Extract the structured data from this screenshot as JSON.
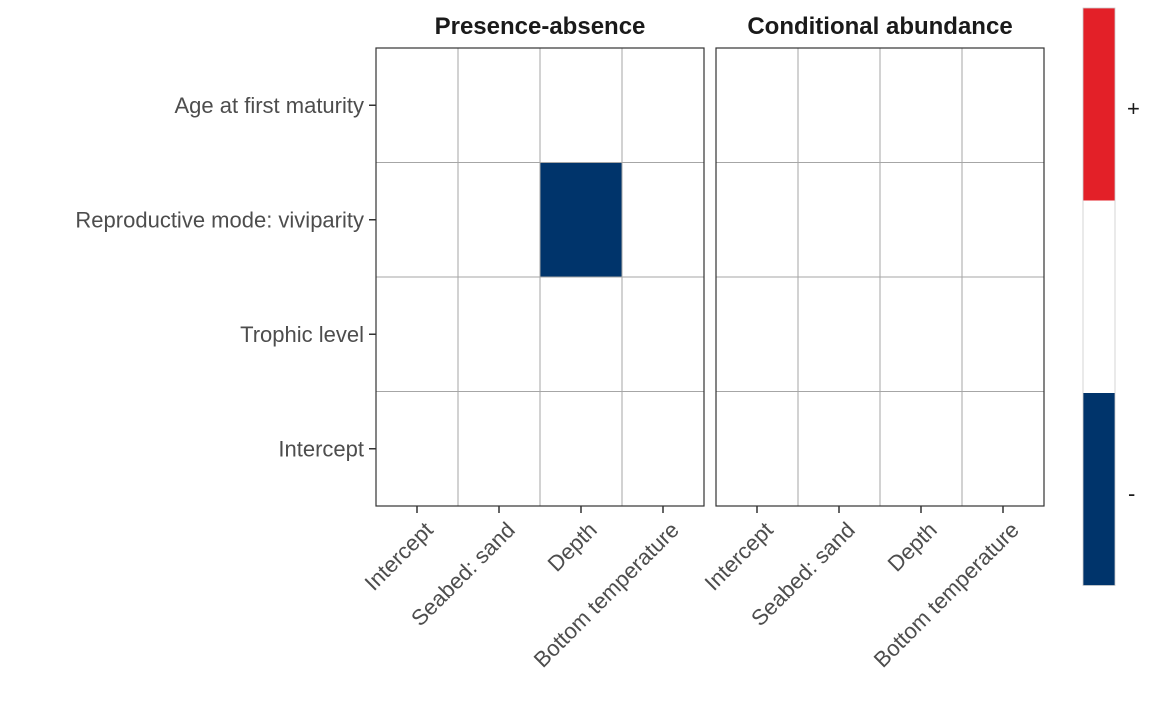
{
  "chart_data": {
    "type": "heatmap",
    "facets": [
      "Presence-absence",
      "Conditional abundance"
    ],
    "x_categories": [
      "Intercept",
      "Seabed: sand",
      "Depth",
      "Bottom temperature"
    ],
    "y_categories": [
      "Age at first maturity",
      "Reproductive mode: viviparity",
      "Trophic level",
      "Intercept"
    ],
    "values": [
      [
        [
          0,
          0,
          0,
          0
        ],
        [
          0,
          0,
          -1,
          0
        ],
        [
          0,
          0,
          0,
          0
        ],
        [
          0,
          0,
          0,
          0
        ]
      ],
      [
        [
          0,
          0,
          0,
          0
        ],
        [
          0,
          0,
          0,
          0
        ],
        [
          0,
          0,
          0,
          0
        ],
        [
          0,
          0,
          0,
          0
        ]
      ]
    ],
    "legend": {
      "placement": "right",
      "labels": [
        "+",
        "-"
      ],
      "levels": [
        1,
        0,
        -1
      ],
      "colors": [
        "#e32028",
        "#ffffff",
        "#00346b"
      ]
    },
    "colors": {
      "positive": "#e32028",
      "neutral": "#ffffff",
      "negative": "#00346b",
      "grid": "#a6a6a6",
      "border": "#333333"
    }
  }
}
